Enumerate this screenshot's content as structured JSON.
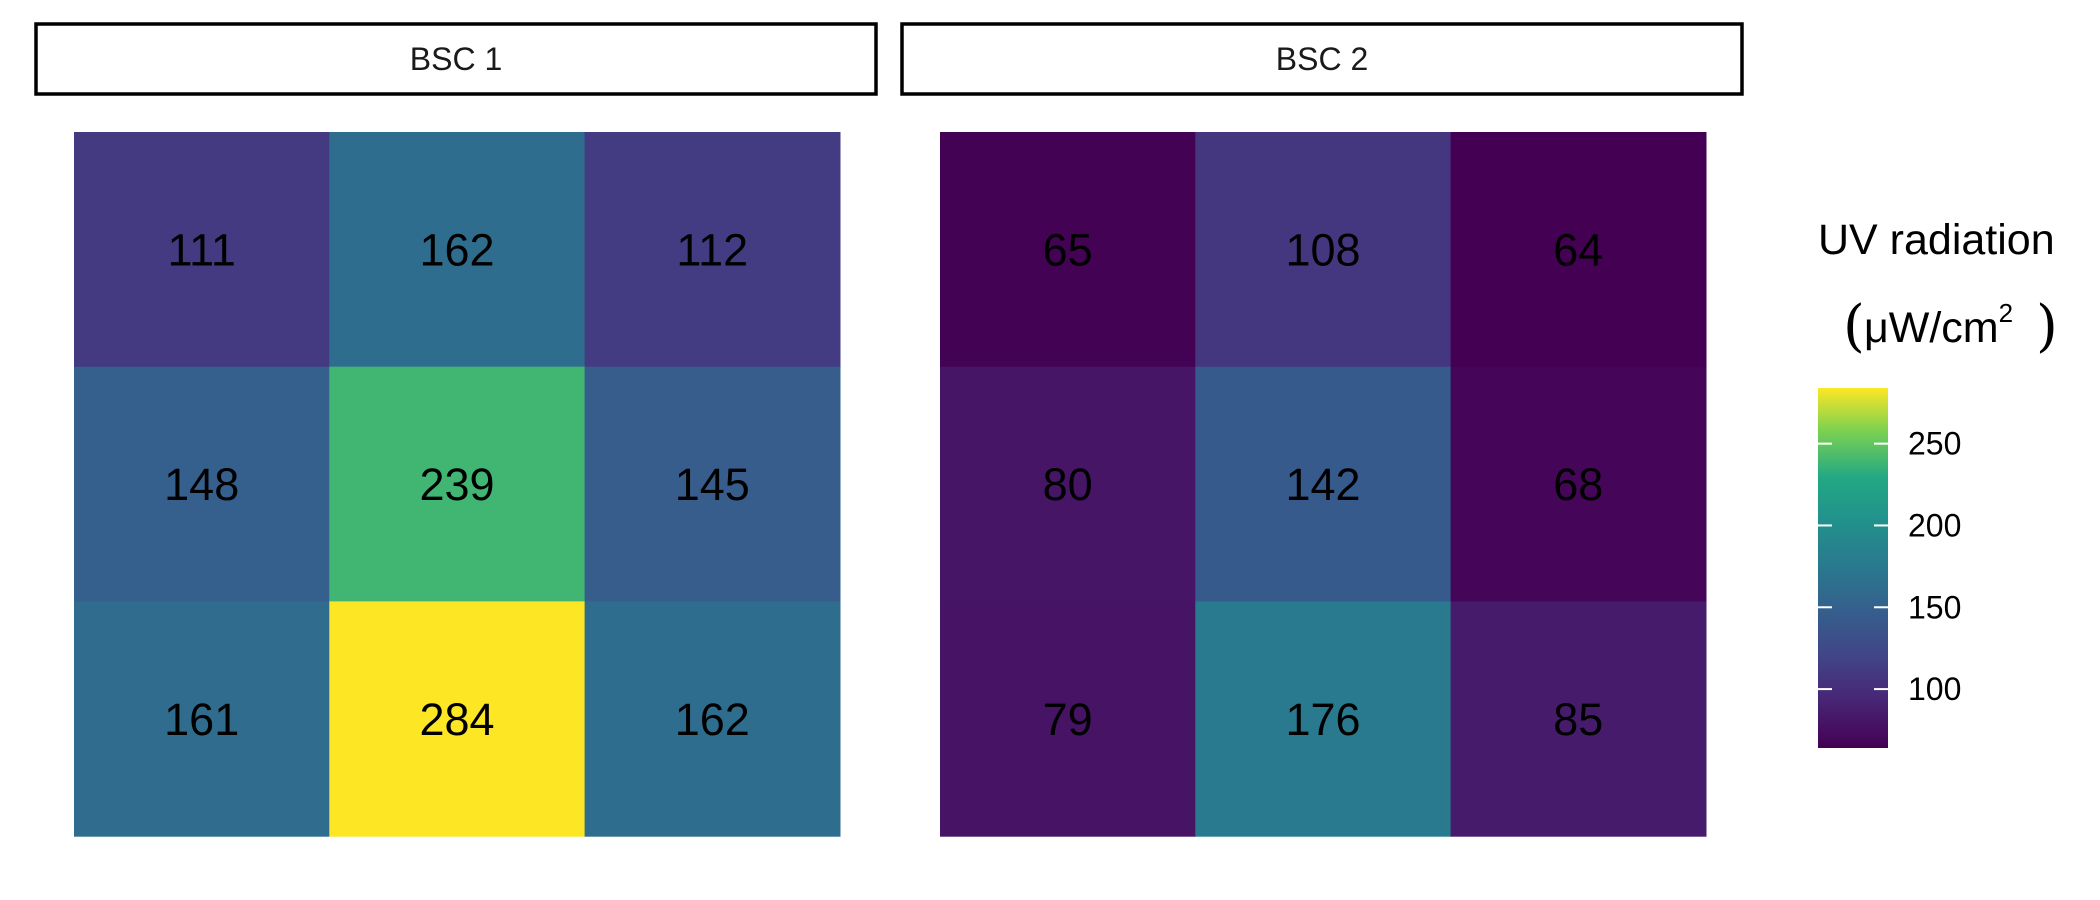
{
  "chart_data": {
    "type": "heatmap",
    "panels": [
      {
        "title": "BSC 1",
        "values": [
          [
            111,
            162,
            112
          ],
          [
            148,
            239,
            145
          ],
          [
            161,
            284,
            162
          ]
        ]
      },
      {
        "title": "BSC 2",
        "values": [
          [
            65,
            108,
            64
          ],
          [
            80,
            142,
            68
          ],
          [
            79,
            176,
            85
          ]
        ]
      }
    ],
    "legend": {
      "title": "UV radiation",
      "unit_base": "μW/cm",
      "unit_exponent": "2",
      "paren_open": "(",
      "paren_close": ")",
      "colorscale": "viridis",
      "range": [
        64,
        284
      ],
      "ticks": [
        100,
        150,
        200,
        250
      ],
      "tick_labels": [
        "100",
        "150",
        "200",
        "250"
      ],
      "placement": "right"
    },
    "cell_label_color": "#000000",
    "grid": false
  }
}
